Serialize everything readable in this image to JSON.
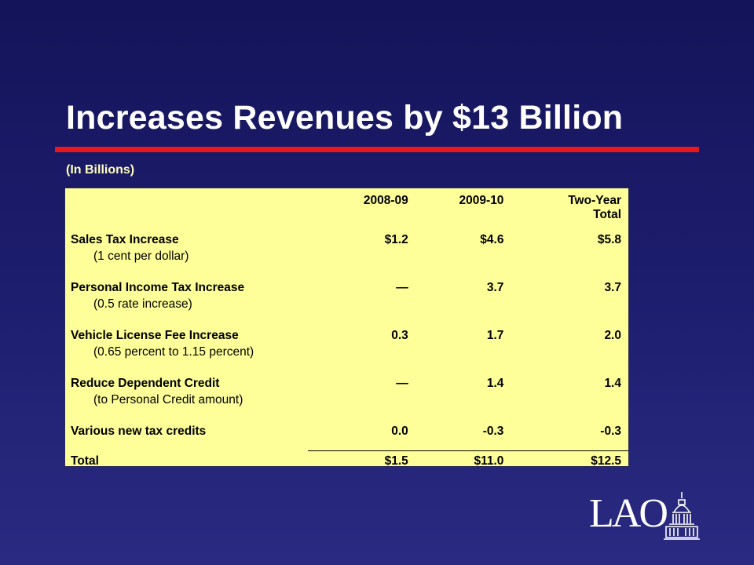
{
  "slide": {
    "title": "Increases Revenues by $13 Billion",
    "subtitle": "(In Billions)",
    "colors": {
      "accent_rule": "#e8161d",
      "table_bg": "#ffff99",
      "background": "#1c1c6c"
    }
  },
  "table": {
    "headers": [
      "",
      "2008-09",
      "2009-10",
      "Two-Year Total"
    ],
    "header_two_year_line1": "Two-Year",
    "header_two_year_line2": "Total",
    "rows": [
      {
        "label": "Sales Tax Increase",
        "detail": "(1 cent per dollar)",
        "y2008": "$1.2",
        "y2009": "$4.6",
        "total": "$5.8"
      },
      {
        "label": "Personal Income Tax Increase",
        "detail": "(0.5 rate increase)",
        "y2008": "—",
        "y2009": "3.7",
        "total": "3.7"
      },
      {
        "label": "Vehicle License Fee Increase",
        "detail": "(0.65 percent to 1.15 percent)",
        "y2008": "0.3",
        "y2009": "1.7",
        "total": "2.0"
      },
      {
        "label": "Reduce Dependent Credit",
        "detail": "(to Personal Credit amount)",
        "y2008": "—",
        "y2009": "1.4",
        "total": "1.4"
      },
      {
        "label": "Various new tax credits",
        "detail": "",
        "y2008": "0.0",
        "y2009": "-0.3",
        "total": "-0.3"
      }
    ],
    "total_row": {
      "label": "Total",
      "y2008": "$1.5",
      "y2009": "$11.0",
      "total": "$12.5"
    }
  },
  "logo": {
    "text": "LAO",
    "icon": "capitol-dome-icon"
  }
}
